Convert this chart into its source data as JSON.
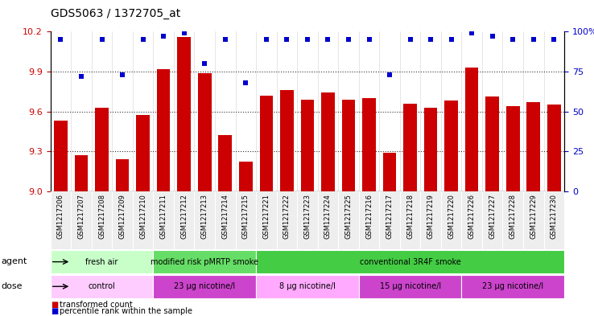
{
  "title": "GDS5063 / 1372705_at",
  "samples": [
    "GSM1217206",
    "GSM1217207",
    "GSM1217208",
    "GSM1217209",
    "GSM1217210",
    "GSM1217211",
    "GSM1217212",
    "GSM1217213",
    "GSM1217214",
    "GSM1217215",
    "GSM1217221",
    "GSM1217222",
    "GSM1217223",
    "GSM1217224",
    "GSM1217225",
    "GSM1217216",
    "GSM1217217",
    "GSM1217218",
    "GSM1217219",
    "GSM1217220",
    "GSM1217226",
    "GSM1217227",
    "GSM1217228",
    "GSM1217229",
    "GSM1217230"
  ],
  "bar_values": [
    9.53,
    9.27,
    9.63,
    9.24,
    9.57,
    9.92,
    10.16,
    9.89,
    9.42,
    9.22,
    9.72,
    9.76,
    9.69,
    9.74,
    9.69,
    9.7,
    9.29,
    9.66,
    9.63,
    9.68,
    9.93,
    9.71,
    9.64,
    9.67,
    9.65
  ],
  "percentile_values": [
    95,
    72,
    95,
    73,
    95,
    97,
    99,
    80,
    95,
    68,
    95,
    95,
    95,
    95,
    95,
    95,
    73,
    95,
    95,
    95,
    99,
    97,
    95,
    95,
    95
  ],
  "bar_color": "#cc0000",
  "percentile_color": "#0000cc",
  "ylim_left": [
    9.0,
    10.2
  ],
  "ylim_right": [
    0,
    100
  ],
  "yticks_left": [
    9.0,
    9.3,
    9.6,
    9.9,
    10.2
  ],
  "yticks_right": [
    0,
    25,
    50,
    75,
    100
  ],
  "yticklabels_right": [
    "0",
    "25",
    "50",
    "75",
    "100%"
  ],
  "grid_lines": [
    9.3,
    9.6,
    9.9
  ],
  "agent_groups": [
    {
      "label": "fresh air",
      "start": 0,
      "end": 5,
      "color": "#c8ffc8"
    },
    {
      "label": "modified risk pMRTP smoke",
      "start": 5,
      "end": 10,
      "color": "#66dd66"
    },
    {
      "label": "conventional 3R4F smoke",
      "start": 10,
      "end": 25,
      "color": "#44cc44"
    }
  ],
  "dose_groups": [
    {
      "label": "control",
      "start": 0,
      "end": 5,
      "color": "#ffccff"
    },
    {
      "label": "23 μg nicotine/l",
      "start": 5,
      "end": 10,
      "color": "#cc44cc"
    },
    {
      "label": "8 μg nicotine/l",
      "start": 10,
      "end": 15,
      "color": "#ffaaff"
    },
    {
      "label": "15 μg nicotine/l",
      "start": 15,
      "end": 20,
      "color": "#cc44cc"
    },
    {
      "label": "23 μg nicotine/l",
      "start": 20,
      "end": 25,
      "color": "#cc44cc"
    }
  ],
  "legend_items": [
    {
      "label": "transformed count",
      "color": "#cc0000"
    },
    {
      "label": "percentile rank within the sample",
      "color": "#0000cc"
    }
  ],
  "background_color": "#ffffff",
  "plot_bg_color": "#ffffff",
  "tick_label_color_left": "#cc0000",
  "tick_label_color_right": "#0000cc"
}
